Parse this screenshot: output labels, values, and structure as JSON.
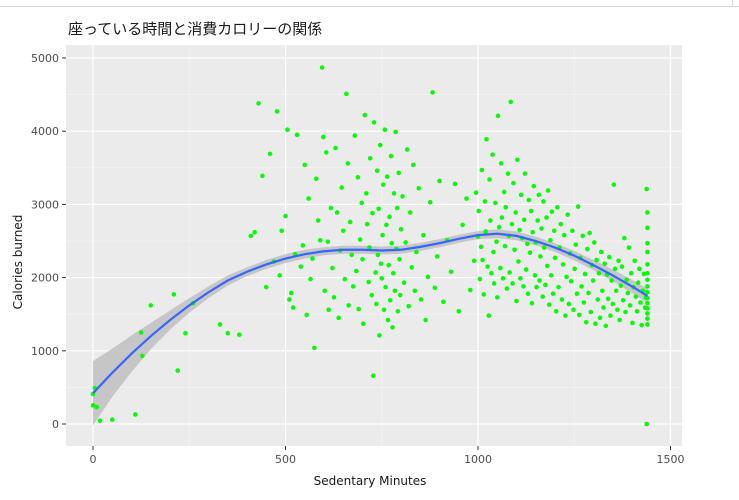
{
  "chart_data": {
    "type": "scatter",
    "title": "座っている時間と消費カロリーの関係",
    "xlabel": "Sedentary Minutes",
    "ylabel": "Calories burned",
    "xlim": [
      -50,
      1500
    ],
    "ylim": [
      -150,
      5150
    ],
    "x_ticks": [
      0,
      500,
      1000,
      1500
    ],
    "y_ticks": [
      0,
      1000,
      2000,
      3000,
      4000,
      5000
    ],
    "grid": true,
    "legend": "none",
    "point_color": "#00ff00",
    "trend_color": "#3366ff",
    "band_color": "#bfbfbf",
    "panel_color": "#ebebeb",
    "points": [
      [
        0,
        255
      ],
      [
        0,
        410
      ],
      [
        5,
        490
      ],
      [
        10,
        230
      ],
      [
        18,
        45
      ],
      [
        50,
        60
      ],
      [
        110,
        130
      ],
      [
        125,
        1250
      ],
      [
        128,
        930
      ],
      [
        150,
        1620
      ],
      [
        210,
        1770
      ],
      [
        220,
        730
      ],
      [
        240,
        1240
      ],
      [
        260,
        1650
      ],
      [
        330,
        1360
      ],
      [
        350,
        1240
      ],
      [
        380,
        1220
      ],
      [
        410,
        2570
      ],
      [
        420,
        2620
      ],
      [
        430,
        4380
      ],
      [
        440,
        3390
      ],
      [
        450,
        1870
      ],
      [
        460,
        3690
      ],
      [
        470,
        2220
      ],
      [
        478,
        4270
      ],
      [
        485,
        2030
      ],
      [
        490,
        2640
      ],
      [
        500,
        2840
      ],
      [
        505,
        4020
      ],
      [
        510,
        1700
      ],
      [
        515,
        1790
      ],
      [
        520,
        1590
      ],
      [
        525,
        2320
      ],
      [
        530,
        3950
      ],
      [
        540,
        2150
      ],
      [
        545,
        2440
      ],
      [
        550,
        3540
      ],
      [
        555,
        1490
      ],
      [
        560,
        3080
      ],
      [
        565,
        1980
      ],
      [
        570,
        2260
      ],
      [
        575,
        1040
      ],
      [
        580,
        3350
      ],
      [
        585,
        2780
      ],
      [
        590,
        2510
      ],
      [
        595,
        4870
      ],
      [
        598,
        3920
      ],
      [
        602,
        1820
      ],
      [
        606,
        3710
      ],
      [
        610,
        2490
      ],
      [
        612,
        1560
      ],
      [
        618,
        2950
      ],
      [
        622,
        2130
      ],
      [
        626,
        1730
      ],
      [
        630,
        3770
      ],
      [
        634,
        2890
      ],
      [
        638,
        1450
      ],
      [
        642,
        2370
      ],
      [
        646,
        3230
      ],
      [
        650,
        2640
      ],
      [
        654,
        1980
      ],
      [
        658,
        4510
      ],
      [
        662,
        3560
      ],
      [
        664,
        1620
      ],
      [
        668,
        2760
      ],
      [
        672,
        2310
      ],
      [
        676,
        1880
      ],
      [
        680,
        3940
      ],
      [
        684,
        2090
      ],
      [
        688,
        3370
      ],
      [
        690,
        1570
      ],
      [
        694,
        2520
      ],
      [
        698,
        3020
      ],
      [
        700,
        2250
      ],
      [
        702,
        1370
      ],
      [
        706,
        4220
      ],
      [
        710,
        3150
      ],
      [
        712,
        2730
      ],
      [
        716,
        1940
      ],
      [
        718,
        2410
      ],
      [
        720,
        3630
      ],
      [
        724,
        1760
      ],
      [
        726,
        2880
      ],
      [
        728,
        660
      ],
      [
        730,
        4120
      ],
      [
        734,
        2070
      ],
      [
        736,
        1640
      ],
      [
        738,
        3460
      ],
      [
        740,
        2310
      ],
      [
        742,
        2940
      ],
      [
        744,
        1210
      ],
      [
        746,
        3810
      ],
      [
        748,
        2190
      ],
      [
        750,
        1990
      ],
      [
        752,
        2580
      ],
      [
        754,
        3270
      ],
      [
        756,
        1560
      ],
      [
        758,
        4020
      ],
      [
        760,
        1870
      ],
      [
        762,
        2720
      ],
      [
        764,
        3380
      ],
      [
        766,
        1420
      ],
      [
        768,
        2170
      ],
      [
        770,
        2830
      ],
      [
        772,
        1690
      ],
      [
        774,
        3660
      ],
      [
        776,
        2470
      ],
      [
        778,
        1320
      ],
      [
        780,
        2060
      ],
      [
        782,
        3150
      ],
      [
        784,
        1820
      ],
      [
        786,
        3990
      ],
      [
        788,
        2390
      ],
      [
        790,
        2950
      ],
      [
        792,
        1540
      ],
      [
        794,
        3430
      ],
      [
        796,
        2250
      ],
      [
        798,
        1760
      ],
      [
        800,
        2660
      ],
      [
        804,
        3110
      ],
      [
        808,
        1930
      ],
      [
        812,
        2480
      ],
      [
        816,
        3750
      ],
      [
        820,
        1610
      ],
      [
        824,
        2890
      ],
      [
        828,
        2140
      ],
      [
        832,
        3540
      ],
      [
        836,
        1820
      ],
      [
        840,
        2350
      ],
      [
        846,
        3220
      ],
      [
        852,
        1700
      ],
      [
        858,
        2580
      ],
      [
        864,
        1420
      ],
      [
        870,
        2010
      ],
      [
        876,
        3030
      ],
      [
        882,
        4530
      ],
      [
        888,
        1860
      ],
      [
        894,
        2290
      ],
      [
        900,
        3320
      ],
      [
        910,
        1670
      ],
      [
        920,
        2510
      ],
      [
        930,
        2080
      ],
      [
        940,
        3280
      ],
      [
        950,
        1540
      ],
      [
        960,
        2720
      ],
      [
        970,
        3080
      ],
      [
        980,
        1830
      ],
      [
        990,
        2230
      ],
      [
        995,
        3160
      ],
      [
        1000,
        2560
      ],
      [
        1002,
        2910
      ],
      [
        1005,
        1980
      ],
      [
        1008,
        2420
      ],
      [
        1010,
        3470
      ],
      [
        1012,
        2240
      ],
      [
        1015,
        1770
      ],
      [
        1018,
        3040
      ],
      [
        1020,
        2630
      ],
      [
        1022,
        3890
      ],
      [
        1025,
        2150
      ],
      [
        1028,
        1480
      ],
      [
        1030,
        3340
      ],
      [
        1032,
        2780
      ],
      [
        1035,
        2060
      ],
      [
        1038,
        3680
      ],
      [
        1040,
        2350
      ],
      [
        1042,
        1920
      ],
      [
        1045,
        3020
      ],
      [
        1048,
        2490
      ],
      [
        1050,
        1730
      ],
      [
        1052,
        4210
      ],
      [
        1055,
        2690
      ],
      [
        1058,
        2130
      ],
      [
        1060,
        3560
      ],
      [
        1062,
        2820
      ],
      [
        1065,
        1990
      ],
      [
        1068,
        3170
      ],
      [
        1070,
        2430
      ],
      [
        1072,
        2960
      ],
      [
        1075,
        1850
      ],
      [
        1078,
        3420
      ],
      [
        1080,
        2570
      ],
      [
        1082,
        2070
      ],
      [
        1085,
        4400
      ],
      [
        1088,
        2730
      ],
      [
        1090,
        1920
      ],
      [
        1092,
        3290
      ],
      [
        1095,
        2380
      ],
      [
        1098,
        2890
      ],
      [
        1100,
        1680
      ],
      [
        1102,
        3610
      ],
      [
        1105,
        2220
      ],
      [
        1108,
        2650
      ],
      [
        1110,
        1990
      ],
      [
        1112,
        3130
      ],
      [
        1115,
        2540
      ],
      [
        1118,
        1880
      ],
      [
        1120,
        2790
      ],
      [
        1122,
        3420
      ],
      [
        1125,
        2110
      ],
      [
        1128,
        2460
      ],
      [
        1130,
        1780
      ],
      [
        1132,
        3060
      ],
      [
        1135,
        2340
      ],
      [
        1138,
        2910
      ],
      [
        1140,
        1650
      ],
      [
        1142,
        2620
      ],
      [
        1145,
        3250
      ],
      [
        1148,
        2030
      ],
      [
        1150,
        2480
      ],
      [
        1152,
        1870
      ],
      [
        1155,
        2780
      ],
      [
        1158,
        3130
      ],
      [
        1160,
        1960
      ],
      [
        1162,
        2290
      ],
      [
        1165,
        2670
      ],
      [
        1168,
        1740
      ],
      [
        1170,
        3040
      ],
      [
        1172,
        2410
      ],
      [
        1175,
        1900
      ],
      [
        1178,
        2820
      ],
      [
        1180,
        2160
      ],
      [
        1182,
        3190
      ],
      [
        1185,
        1630
      ],
      [
        1188,
        2510
      ],
      [
        1190,
        2030
      ],
      [
        1192,
        2900
      ],
      [
        1195,
        1780
      ],
      [
        1198,
        2640
      ],
      [
        1200,
        2270
      ],
      [
        1203,
        1540
      ],
      [
        1206,
        2960
      ],
      [
        1209,
        1870
      ],
      [
        1212,
        2410
      ],
      [
        1215,
        2730
      ],
      [
        1218,
        1700
      ],
      [
        1221,
        2180
      ],
      [
        1224,
        2580
      ],
      [
        1227,
        1480
      ],
      [
        1230,
        2010
      ],
      [
        1233,
        2860
      ],
      [
        1236,
        1640
      ],
      [
        1239,
        2330
      ],
      [
        1242,
        1950
      ],
      [
        1245,
        2640
      ],
      [
        1248,
        1560
      ],
      [
        1251,
        2120
      ],
      [
        1254,
        2450
      ],
      [
        1257,
        1780
      ],
      [
        1260,
        2970
      ],
      [
        1263,
        1490
      ],
      [
        1266,
        2270
      ],
      [
        1269,
        1880
      ],
      [
        1272,
        2570
      ],
      [
        1275,
        1660
      ],
      [
        1278,
        2050
      ],
      [
        1281,
        1390
      ],
      [
        1284,
        2390
      ],
      [
        1287,
        1790
      ],
      [
        1290,
        2610
      ],
      [
        1293,
        1530
      ],
      [
        1296,
        2170
      ],
      [
        1299,
        1960
      ],
      [
        1302,
        2480
      ],
      [
        1305,
        1370
      ],
      [
        1308,
        2240
      ],
      [
        1311,
        1700
      ],
      [
        1314,
        2060
      ],
      [
        1317,
        1450
      ],
      [
        1320,
        2350
      ],
      [
        1323,
        1820
      ],
      [
        1326,
        1590
      ],
      [
        1329,
        2190
      ],
      [
        1332,
        1340
      ],
      [
        1335,
        2040
      ],
      [
        1338,
        1710
      ],
      [
        1341,
        2280
      ],
      [
        1344,
        1480
      ],
      [
        1347,
        1960
      ],
      [
        1350,
        1640
      ],
      [
        1353,
        3270
      ],
      [
        1356,
        2120
      ],
      [
        1359,
        1820
      ],
      [
        1362,
        1560
      ],
      [
        1365,
        2230
      ],
      [
        1368,
        1420
      ],
      [
        1371,
        1890
      ],
      [
        1374,
        2150
      ],
      [
        1377,
        1690
      ],
      [
        1380,
        2540
      ],
      [
        1383,
        1530
      ],
      [
        1386,
        1970
      ],
      [
        1389,
        1790
      ],
      [
        1392,
        2410
      ],
      [
        1395,
        1620
      ],
      [
        1398,
        2060
      ],
      [
        1401,
        1380
      ],
      [
        1404,
        1870
      ],
      [
        1407,
        2230
      ],
      [
        1410,
        1740
      ],
      [
        1413,
        1540
      ],
      [
        1416,
        1930
      ],
      [
        1419,
        2120
      ],
      [
        1422,
        1660
      ],
      [
        1425,
        1350
      ],
      [
        1428,
        1820
      ],
      [
        1431,
        2050
      ],
      [
        1434,
        1590
      ],
      [
        1436,
        1730
      ],
      [
        1438,
        0
      ],
      [
        1438,
        3210
      ],
      [
        1440,
        2890
      ],
      [
        1440,
        2680
      ],
      [
        1440,
        2470
      ],
      [
        1440,
        2350
      ],
      [
        1440,
        2180
      ],
      [
        1440,
        2060
      ],
      [
        1440,
        1970
      ],
      [
        1440,
        1880
      ],
      [
        1440,
        1800
      ],
      [
        1440,
        1720
      ],
      [
        1440,
        1650
      ],
      [
        1440,
        1580
      ],
      [
        1440,
        1510
      ],
      [
        1440,
        1440
      ],
      [
        1440,
        1360
      ]
    ],
    "trend": [
      [
        0,
        420
      ],
      [
        50,
        700
      ],
      [
        100,
        960
      ],
      [
        150,
        1200
      ],
      [
        200,
        1420
      ],
      [
        250,
        1620
      ],
      [
        300,
        1800
      ],
      [
        350,
        1960
      ],
      [
        400,
        2080
      ],
      [
        450,
        2180
      ],
      [
        500,
        2260
      ],
      [
        550,
        2320
      ],
      [
        600,
        2360
      ],
      [
        650,
        2380
      ],
      [
        700,
        2380
      ],
      [
        750,
        2370
      ],
      [
        800,
        2380
      ],
      [
        850,
        2420
      ],
      [
        900,
        2470
      ],
      [
        950,
        2530
      ],
      [
        1000,
        2580
      ],
      [
        1050,
        2600
      ],
      [
        1100,
        2570
      ],
      [
        1150,
        2500
      ],
      [
        1200,
        2410
      ],
      [
        1250,
        2300
      ],
      [
        1300,
        2170
      ],
      [
        1350,
        2030
      ],
      [
        1400,
        1880
      ],
      [
        1440,
        1750
      ]
    ],
    "band_halfwidth": [
      [
        0,
        440
      ],
      [
        50,
        330
      ],
      [
        100,
        250
      ],
      [
        150,
        180
      ],
      [
        200,
        130
      ],
      [
        250,
        100
      ],
      [
        300,
        80
      ],
      [
        350,
        70
      ],
      [
        400,
        60
      ],
      [
        450,
        60
      ],
      [
        500,
        60
      ],
      [
        550,
        60
      ],
      [
        600,
        55
      ],
      [
        650,
        55
      ],
      [
        700,
        55
      ],
      [
        750,
        55
      ],
      [
        800,
        55
      ],
      [
        850,
        55
      ],
      [
        900,
        55
      ],
      [
        950,
        55
      ],
      [
        1000,
        55
      ],
      [
        1050,
        60
      ],
      [
        1100,
        60
      ],
      [
        1150,
        60
      ],
      [
        1200,
        60
      ],
      [
        1250,
        65
      ],
      [
        1300,
        70
      ],
      [
        1350,
        80
      ],
      [
        1400,
        90
      ],
      [
        1440,
        100
      ]
    ]
  }
}
